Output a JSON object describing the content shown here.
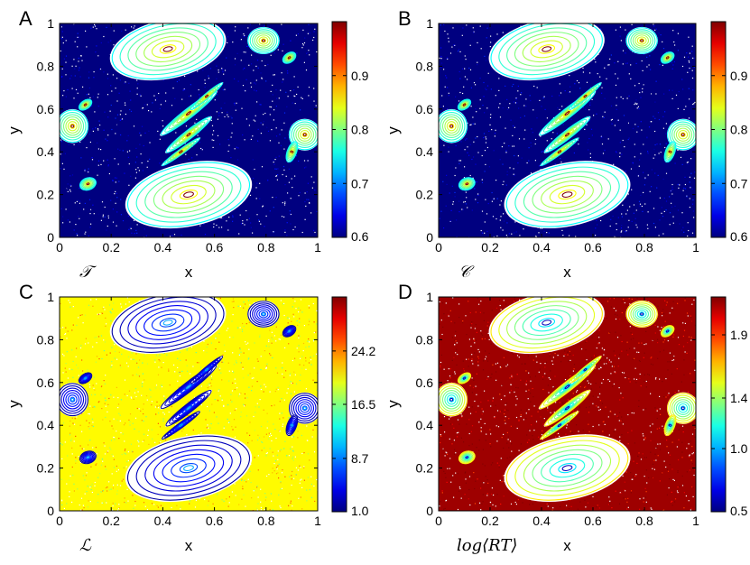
{
  "chart_data": [
    {
      "panel": "A",
      "type": "heatmap",
      "description_label": "𝒯",
      "xlabel": "x",
      "ylabel": "y",
      "xlim": [
        0,
        1
      ],
      "ylim": [
        0,
        1
      ],
      "xticks": [
        "0",
        "0.2",
        "0.4",
        "0.6",
        "0.8",
        "1"
      ],
      "yticks": [
        "0",
        "0.2",
        "0.4",
        "0.6",
        "0.8",
        "1"
      ],
      "colorbar": {
        "range": [
          0.6,
          1.0
        ],
        "ticks": [
          "0.6",
          "0.7",
          "0.8",
          "0.9"
        ]
      },
      "background_value": 0.6,
      "island_values": [
        0.75,
        0.85,
        1.0
      ],
      "colormap": "jet"
    },
    {
      "panel": "B",
      "type": "heatmap",
      "description_label": "𝒞",
      "xlabel": "x",
      "ylabel": "y",
      "xlim": [
        0,
        1
      ],
      "ylim": [
        0,
        1
      ],
      "xticks": [
        "0",
        "0.2",
        "0.4",
        "0.6",
        "0.8",
        "1"
      ],
      "yticks": [
        "0",
        "0.2",
        "0.4",
        "0.6",
        "0.8",
        "1"
      ],
      "colorbar": {
        "range": [
          0.6,
          1.0
        ],
        "ticks": [
          "0.6",
          "0.7",
          "0.8",
          "0.9"
        ]
      },
      "background_value": 0.6,
      "island_values": [
        0.75,
        0.85,
        1.0
      ],
      "colormap": "jet"
    },
    {
      "panel": "C",
      "type": "heatmap",
      "description_label": "ℒ",
      "xlabel": "x",
      "ylabel": "y",
      "xlim": [
        0,
        1
      ],
      "ylim": [
        0,
        1
      ],
      "xticks": [
        "0",
        "0.2",
        "0.4",
        "0.6",
        "0.8",
        "1"
      ],
      "yticks": [
        "0",
        "0.2",
        "0.4",
        "0.6",
        "0.8",
        "1"
      ],
      "colorbar": {
        "range": [
          1.0,
          32.0
        ],
        "ticks": [
          "1.0",
          "8.7",
          "16.5",
          "24.2"
        ]
      },
      "background_value": 20.5,
      "island_values": [
        2.0,
        7.0,
        10.0
      ],
      "colormap": "jet"
    },
    {
      "panel": "D",
      "type": "heatmap",
      "description_label": "log⟨RT⟩",
      "xlabel": "x",
      "ylabel": "y",
      "xlim": [
        0,
        1
      ],
      "ylim": [
        0,
        1
      ],
      "xticks": [
        "0",
        "0.2",
        "0.4",
        "0.6",
        "0.8",
        "1"
      ],
      "yticks": [
        "0",
        "0.2",
        "0.4",
        "0.6",
        "0.8",
        "1"
      ],
      "colorbar": {
        "range": [
          0.5,
          2.2
        ],
        "ticks": [
          "0.5",
          "1.0",
          "1.4",
          "1.9"
        ]
      },
      "background_value": 2.15,
      "island_values": [
        1.6,
        1.1,
        0.6
      ],
      "colormap": "jet"
    }
  ]
}
